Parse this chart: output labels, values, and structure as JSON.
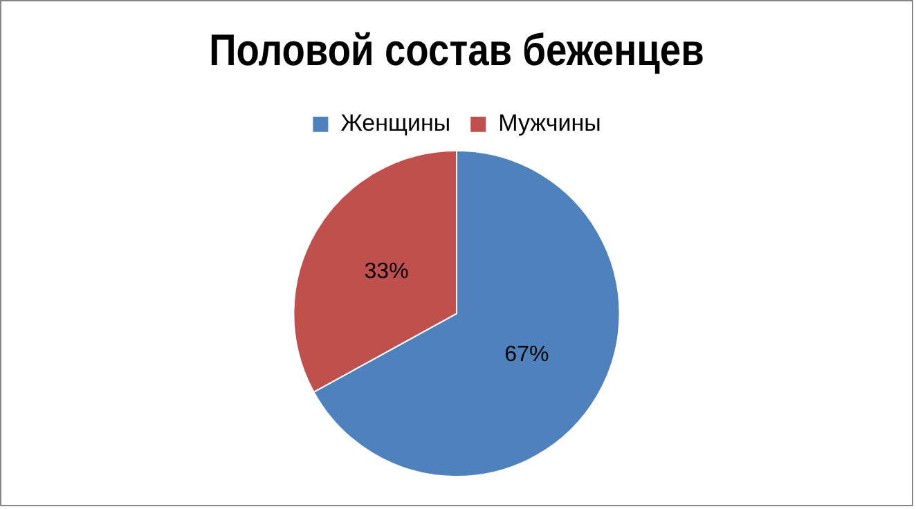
{
  "chart_data": {
    "type": "pie",
    "title": "Половой состав беженцев",
    "categories": [
      "Женщины",
      "Мужчины"
    ],
    "values": [
      67,
      33
    ],
    "colors": [
      "#4f81bd",
      "#c0504d"
    ],
    "value_labels": [
      "67%",
      "33%"
    ],
    "legend": "top"
  }
}
